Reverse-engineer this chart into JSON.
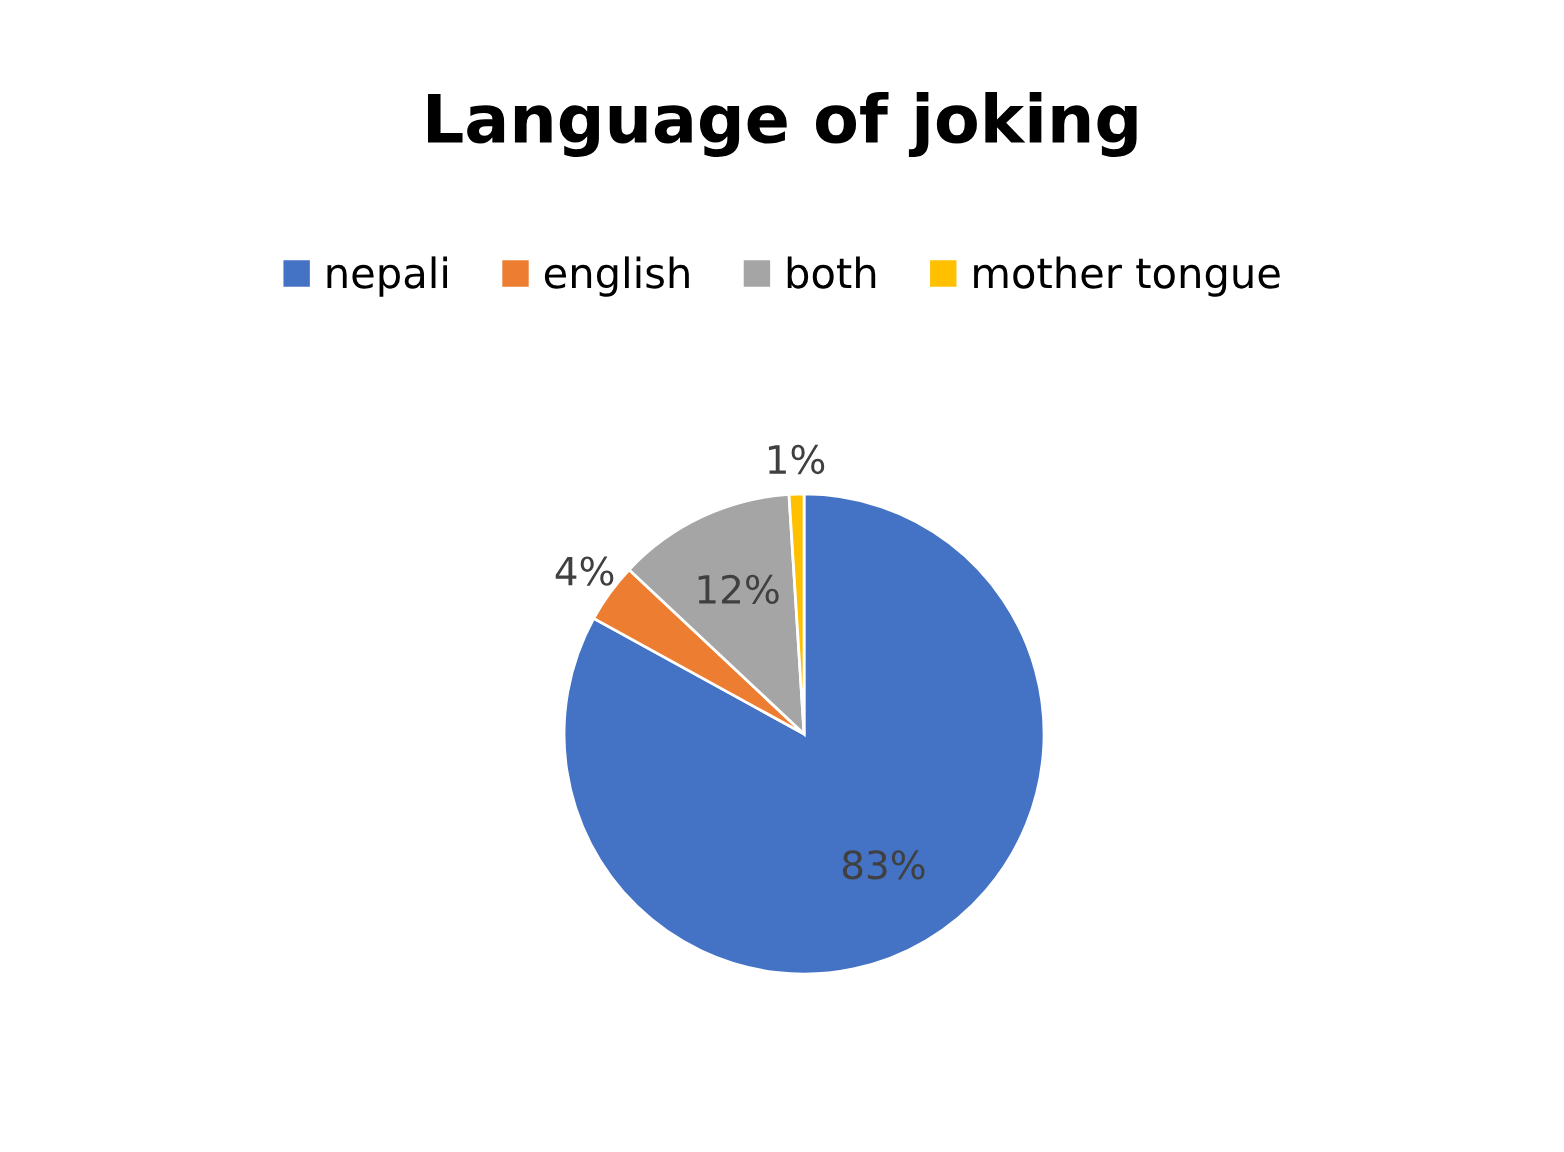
{
  "chart_data": {
    "type": "pie",
    "title": "Language of joking",
    "categories": [
      "nepali",
      "english",
      "both",
      "mother tongue"
    ],
    "values": [
      83,
      4,
      12,
      1
    ],
    "colors": [
      "#4472c4",
      "#ed7d31",
      "#a5a5a5",
      "#ffc000"
    ],
    "value_labels": [
      "83%",
      "4%",
      "12%",
      "1%"
    ],
    "legend": "top"
  }
}
